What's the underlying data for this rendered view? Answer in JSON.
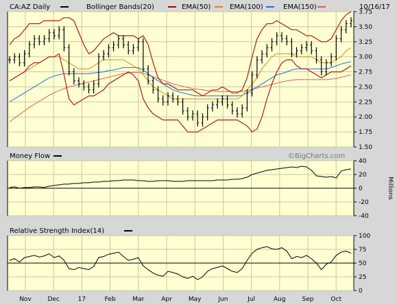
{
  "header": {
    "symbol_label": "CA:AZ Daily",
    "date": "10/16/17",
    "legends": [
      {
        "name": "Bollinger Bands(20)",
        "color": "#000000"
      },
      {
        "name": "EMA(50)",
        "color": "#a00000"
      },
      {
        "name": "EMA(100)",
        "color": "#d08a20"
      },
      {
        "name": "EMA(150)",
        "color": "#1a6fd8"
      },
      {
        "name": "",
        "color": "#d06060"
      }
    ]
  },
  "watermark": "©BigCharts.com",
  "colors": {
    "plot_bg": "#ffffd2",
    "frame_bg": "#d7d7d7",
    "price": "#000000",
    "bollinger": "#b01818",
    "ema50": "#d08a20",
    "ema100": "#1a6fd8",
    "ema150": "#d06060",
    "grid": "#c8c8a0"
  },
  "chart_data": [
    {
      "name": "price",
      "type": "line",
      "x_labels": [
        "Nov",
        "Dec",
        "17",
        "Feb",
        "Mar",
        "Apr",
        "May",
        "Jun",
        "Jul",
        "Aug",
        "Sep",
        "Oct"
      ],
      "ylim": [
        1.5,
        3.75
      ],
      "yticks": [
        1.5,
        1.75,
        2.0,
        2.25,
        2.5,
        2.75,
        3.0,
        3.25,
        3.5,
        3.75
      ],
      "ytick_labels": [
        "1.50",
        "1.75",
        "2.00",
        "2.25",
        "2.50",
        "2.75",
        "3.00",
        "3.25",
        "3.50",
        "3.75"
      ],
      "series": [
        {
          "name": "",
          "key": "close",
          "values": [
            2.95,
            3.0,
            2.9,
            3.05,
            3.2,
            3.3,
            3.25,
            3.3,
            3.4,
            3.35,
            3.45,
            3.15,
            2.75,
            2.6,
            2.55,
            2.5,
            2.45,
            2.55,
            3.0,
            3.05,
            3.15,
            3.2,
            3.3,
            3.2,
            3.1,
            3.15,
            3.25,
            2.8,
            2.6,
            2.45,
            2.3,
            2.25,
            2.35,
            2.3,
            2.25,
            2.1,
            2.0,
            2.05,
            1.9,
            2.0,
            2.15,
            2.2,
            2.25,
            2.3,
            2.2,
            2.1,
            2.05,
            2.15,
            2.4,
            2.7,
            2.95,
            3.05,
            3.15,
            3.25,
            3.35,
            3.3,
            3.25,
            3.05,
            3.1,
            3.15,
            3.2,
            3.1,
            2.95,
            2.75,
            2.9,
            3.0,
            3.3,
            3.45,
            3.55,
            3.6
          ]
        },
        {
          "name": "Bollinger Bands(20)",
          "key": "bb_upper",
          "values": [
            3.2,
            3.3,
            3.35,
            3.45,
            3.55,
            3.55,
            3.55,
            3.6,
            3.6,
            3.6,
            3.6,
            3.65,
            3.65,
            3.6,
            3.4,
            3.2,
            3.05,
            3.1,
            3.2,
            3.3,
            3.35,
            3.4,
            3.35,
            3.35,
            3.35,
            3.35,
            3.3,
            3.35,
            3.2,
            2.9,
            2.65,
            2.55,
            2.55,
            2.5,
            2.45,
            2.45,
            2.45,
            2.45,
            2.4,
            2.35,
            2.4,
            2.45,
            2.45,
            2.5,
            2.45,
            2.4,
            2.4,
            2.45,
            2.65,
            3.0,
            3.3,
            3.45,
            3.55,
            3.55,
            3.6,
            3.55,
            3.5,
            3.45,
            3.45,
            3.4,
            3.35,
            3.35,
            3.3,
            3.25,
            3.25,
            3.3,
            3.45,
            3.6,
            3.7,
            3.75
          ]
        },
        {
          "name": "Bollinger Bands(20)",
          "key": "bb_lower",
          "values": [
            2.6,
            2.65,
            2.7,
            2.75,
            2.85,
            2.9,
            2.9,
            2.95,
            3.0,
            3.0,
            3.05,
            2.7,
            2.3,
            2.2,
            2.25,
            2.3,
            2.35,
            2.35,
            2.4,
            2.45,
            2.55,
            2.6,
            2.65,
            2.7,
            2.75,
            2.7,
            2.6,
            2.3,
            2.15,
            2.05,
            2.0,
            1.95,
            1.95,
            1.95,
            1.95,
            1.85,
            1.75,
            1.75,
            1.75,
            1.8,
            1.85,
            1.9,
            1.95,
            1.95,
            1.95,
            1.95,
            1.95,
            1.9,
            1.85,
            1.75,
            1.8,
            2.0,
            2.3,
            2.55,
            2.75,
            2.9,
            2.95,
            2.95,
            2.85,
            2.8,
            2.8,
            2.75,
            2.7,
            2.65,
            2.7,
            2.75,
            2.75,
            2.75,
            2.8,
            2.85
          ]
        },
        {
          "name": "EMA(50)",
          "key": "ema50",
          "values": [
            2.6,
            2.65,
            2.7,
            2.75,
            2.8,
            2.85,
            2.9,
            2.95,
            3.0,
            3.0,
            3.0,
            2.95,
            2.9,
            2.85,
            2.8,
            2.8,
            2.8,
            2.85,
            2.9,
            2.95,
            2.95,
            2.95,
            2.95,
            2.95,
            2.9,
            2.85,
            2.8,
            2.7,
            2.6,
            2.5,
            2.45,
            2.4,
            2.35,
            2.3,
            2.3,
            2.3,
            2.3,
            2.3,
            2.3,
            2.3,
            2.3,
            2.3,
            2.3,
            2.3,
            2.3,
            2.3,
            2.3,
            2.35,
            2.45,
            2.55,
            2.65,
            2.8,
            2.9,
            3.0,
            3.05,
            3.05,
            3.05,
            3.05,
            3.0,
            3.0,
            3.0,
            3.0,
            2.95,
            2.9,
            2.9,
            2.9,
            2.95,
            3.0,
            3.1,
            3.15
          ]
        },
        {
          "name": "EMA(100)",
          "key": "ema100",
          "values": [
            2.25,
            2.3,
            2.35,
            2.4,
            2.45,
            2.5,
            2.55,
            2.6,
            2.65,
            2.68,
            2.7,
            2.72,
            2.72,
            2.72,
            2.72,
            2.72,
            2.72,
            2.73,
            2.74,
            2.75,
            2.77,
            2.78,
            2.8,
            2.82,
            2.82,
            2.82,
            2.82,
            2.78,
            2.72,
            2.65,
            2.6,
            2.55,
            2.5,
            2.45,
            2.42,
            2.4,
            2.38,
            2.36,
            2.35,
            2.35,
            2.35,
            2.35,
            2.35,
            2.35,
            2.35,
            2.35,
            2.35,
            2.36,
            2.4,
            2.45,
            2.5,
            2.55,
            2.6,
            2.65,
            2.7,
            2.72,
            2.75,
            2.78,
            2.8,
            2.8,
            2.8,
            2.8,
            2.8,
            2.8,
            2.8,
            2.82,
            2.85,
            2.88,
            2.9,
            2.92
          ]
        },
        {
          "name": "EMA(150)",
          "key": "ema150",
          "values": [
            1.92,
            1.98,
            2.04,
            2.1,
            2.16,
            2.21,
            2.26,
            2.31,
            2.36,
            2.4,
            2.44,
            2.47,
            2.5,
            2.52,
            2.54,
            2.56,
            2.58,
            2.6,
            2.62,
            2.64,
            2.66,
            2.68,
            2.7,
            2.72,
            2.73,
            2.74,
            2.74,
            2.72,
            2.7,
            2.67,
            2.64,
            2.61,
            2.58,
            2.55,
            2.53,
            2.51,
            2.49,
            2.47,
            2.46,
            2.45,
            2.44,
            2.43,
            2.42,
            2.42,
            2.42,
            2.42,
            2.42,
            2.42,
            2.44,
            2.46,
            2.48,
            2.5,
            2.52,
            2.54,
            2.56,
            2.58,
            2.6,
            2.61,
            2.62,
            2.62,
            2.62,
            2.62,
            2.62,
            2.62,
            2.62,
            2.63,
            2.64,
            2.66,
            2.68,
            2.7
          ]
        }
      ]
    },
    {
      "name": "money_flow",
      "type": "line",
      "title": "Money Flow",
      "ylim": [
        -40,
        40
      ],
      "yticks": [
        -40,
        -20,
        0,
        20,
        40
      ],
      "ytick_labels": [
        "-40",
        "-20",
        "0",
        "20",
        "40"
      ],
      "ylabel": "Millions",
      "series": [
        {
          "name": "Money Flow",
          "key": "mf",
          "values": [
            1,
            2,
            0,
            1,
            1,
            2,
            2,
            1,
            3,
            4,
            5,
            6,
            6,
            7,
            7,
            8,
            8,
            9,
            9,
            10,
            10,
            11,
            11,
            12,
            12,
            12,
            11,
            11,
            10,
            10,
            11,
            11,
            11,
            10,
            10,
            10,
            11,
            11,
            11,
            11,
            11,
            11,
            12,
            12,
            12,
            13,
            13,
            14,
            16,
            20,
            22,
            24,
            26,
            27,
            28,
            29,
            30,
            31,
            30,
            32,
            31,
            26,
            18,
            17,
            16,
            17,
            15,
            25,
            27,
            28
          ]
        }
      ]
    },
    {
      "name": "rsi",
      "type": "line",
      "title": "Relative Strength Index(14)",
      "ylim": [
        0,
        100
      ],
      "yticks": [
        0,
        25,
        50,
        75,
        100
      ],
      "ytick_labels": [
        "0",
        "25",
        "50",
        "75",
        "100"
      ],
      "series": [
        {
          "name": "Relative Strength Index(14)",
          "key": "rsi",
          "values": [
            55,
            58,
            52,
            60,
            62,
            64,
            61,
            63,
            67,
            60,
            63,
            55,
            40,
            38,
            42,
            40,
            38,
            44,
            60,
            62,
            66,
            68,
            70,
            62,
            55,
            57,
            60,
            45,
            38,
            32,
            28,
            26,
            35,
            33,
            30,
            25,
            22,
            26,
            20,
            25,
            35,
            40,
            42,
            45,
            40,
            35,
            33,
            40,
            55,
            68,
            75,
            78,
            80,
            76,
            75,
            78,
            72,
            58,
            62,
            60,
            64,
            58,
            50,
            38,
            48,
            52,
            64,
            70,
            72,
            68
          ]
        }
      ],
      "reference_line": 50
    }
  ]
}
